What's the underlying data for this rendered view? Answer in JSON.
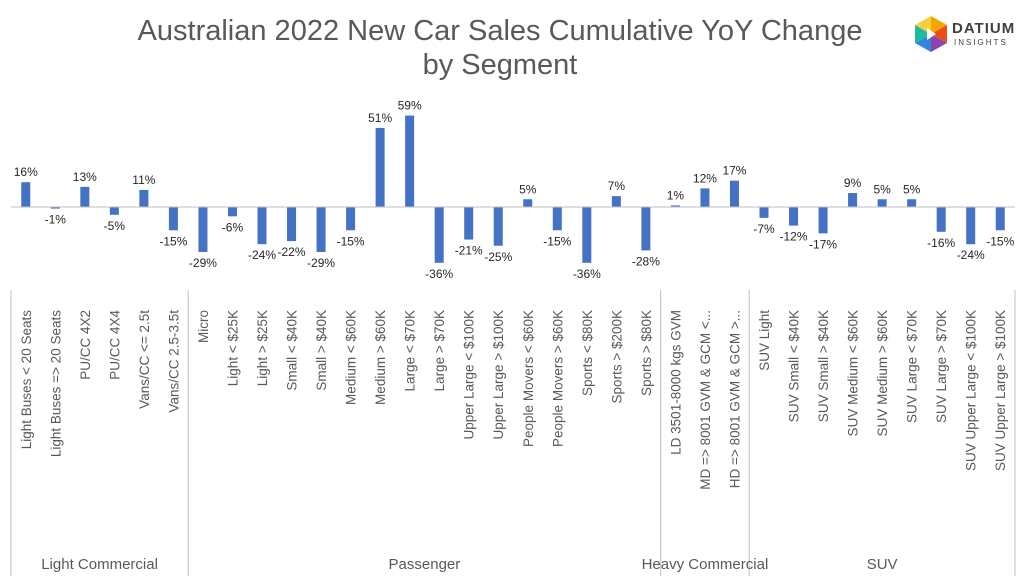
{
  "title": "Australian 2022 New Car Sales Cumulative YoY Change by Segment",
  "logo": {
    "text": "DATIUM",
    "subtext": "INSIGHTS"
  },
  "colors": {
    "bar": "#4472C4",
    "axis": "#BFBFBF",
    "text": "#595959"
  },
  "chart_data": {
    "type": "bar",
    "title": "Australian 2022 New Car Sales Cumulative YoY Change by Segment",
    "xlabel": "",
    "ylabel": "",
    "grid": false,
    "legend": "none",
    "value_format": "percent",
    "categories": [
      "Light Buses < 20 Seats",
      "Light Buses => 20 Seats",
      "PU/CC 4X2",
      "PU/CC 4X4",
      "Vans/CC <= 2.5t",
      "Vans/CC 2.5-3.5t",
      "Micro",
      "Light < $25K",
      "Light > $25K",
      "Small < $40K",
      "Small > $40K",
      "Medium < $60K",
      "Medium > $60K",
      "Large < $70K",
      "Large > $70K",
      "Upper Large < $100K",
      "Upper Large > $100K",
      "People Movers < $60K",
      "People Movers > $60K",
      "Sports < $80K",
      "Sports > $200K",
      "Sports > $80K",
      "LD 3501-8000 kgs GVM",
      "MD => 8001 GVM & GCM <...",
      "HD => 8001 GVM & GCM >...",
      "SUV Light",
      "SUV Small < $40K",
      "SUV Small > $40K",
      "SUV Medium < $60K",
      "SUV Medium > $60K",
      "SUV Large < $70K",
      "SUV Large > $70K",
      "SUV Upper Large < $100K",
      "SUV Upper Large > $100K"
    ],
    "values": [
      16,
      -1,
      13,
      -5,
      11,
      -15,
      -29,
      -6,
      -24,
      -22,
      -29,
      -15,
      51,
      59,
      -36,
      -21,
      -25,
      5,
      -15,
      -36,
      7,
      -28,
      1,
      12,
      17,
      -7,
      -12,
      -17,
      9,
      5,
      5,
      -16,
      -24,
      -15
    ],
    "labels": [
      "16%",
      "-1%",
      "13%",
      "-5%",
      "11%",
      "-15%",
      "-29%",
      "-6%",
      "-24%",
      "-22%",
      "-29%",
      "-15%",
      "51%",
      "59%",
      "-36%",
      "-21%",
      "-25%",
      "5%",
      "-15%",
      "-36%",
      "7%",
      "-28%",
      "1%",
      "12%",
      "17%",
      "-7%",
      "-12%",
      "-17%",
      "9%",
      "5%",
      "5%",
      "-16%",
      "-24%",
      "-15%"
    ],
    "groups": [
      {
        "name": "Light Commercial",
        "count": 6
      },
      {
        "name": "Passenger",
        "count": 16
      },
      {
        "name": "Heavy Commercial",
        "count": 3
      },
      {
        "name": "SUV",
        "count": 9
      }
    ]
  }
}
